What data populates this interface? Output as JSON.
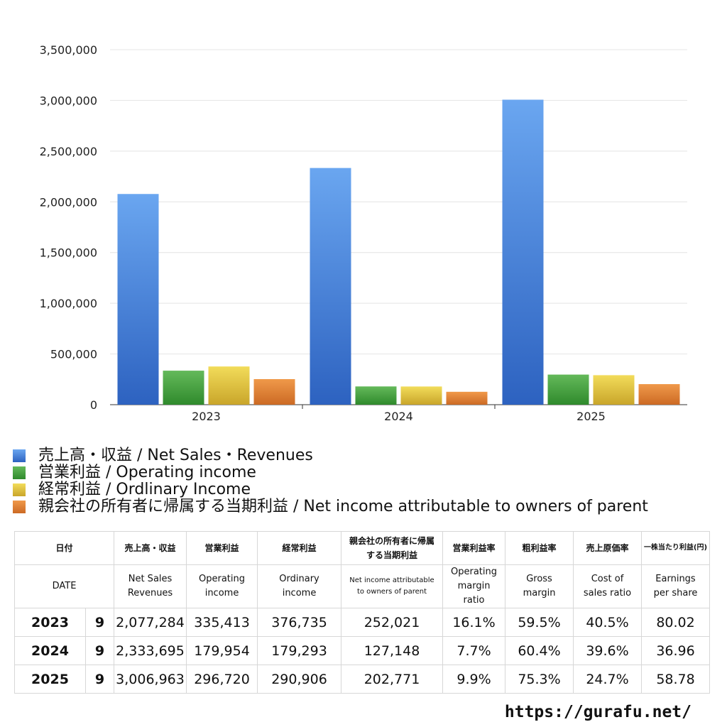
{
  "chart_data": {
    "type": "bar",
    "categories": [
      "2023",
      "2024",
      "2025"
    ],
    "ylim": [
      0,
      3500000
    ],
    "yticks": [
      "0",
      "500,000",
      "1,000,000",
      "1,500,000",
      "2,000,000",
      "2,500,000",
      "3,000,000",
      "3,500,000"
    ],
    "ytick_values": [
      0,
      500000,
      1000000,
      1500000,
      2000000,
      2500000,
      3000000,
      3500000
    ],
    "grid": true,
    "legend_position": "bottom",
    "series": [
      {
        "name": "売上高・収益 / Net Sales・Revenues",
        "color": "#4a86df",
        "values": [
          2077284,
          2333695,
          3006963
        ]
      },
      {
        "name": "営業利益 / Operating income",
        "color": "#45a23e",
        "values": [
          335413,
          179954,
          296720
        ]
      },
      {
        "name": "経常利益 / Ordlinary Income",
        "color": "#e6c73a",
        "values": [
          376735,
          179293,
          290906
        ]
      },
      {
        "name": "親会社の所有者に帰属する当期利益 / Net income attributable to owners of parent",
        "color": "#e07e30",
        "values": [
          252021,
          127148,
          202771
        ]
      }
    ]
  },
  "table": {
    "headers_jp": [
      "日付",
      "売上高・収益",
      "営業利益",
      "経常利益",
      "親会社の所有者に帰属する当期利益",
      "営業利益率",
      "粗利益率",
      "売上原価率",
      "一株当たり利益(円)"
    ],
    "headers_en": [
      "DATE",
      "Net Sales Revenues",
      "Operating income",
      "Ordinary income",
      "Net income attributable to owners of parent",
      "Operating margin ratio",
      "Gross margin",
      "Cost of sales ratio",
      "Earnings per share"
    ],
    "rows": [
      {
        "year": "2023",
        "month": "9",
        "sales": "2,077,284",
        "op": "335,413",
        "ord": "376,735",
        "net": "252,021",
        "opm": "16.1%",
        "gm": "59.5%",
        "cos": "40.5%",
        "eps": "80.02"
      },
      {
        "year": "2024",
        "month": "9",
        "sales": "2,333,695",
        "op": "179,954",
        "ord": "179,293",
        "net": "127,148",
        "opm": "7.7%",
        "gm": "60.4%",
        "cos": "39.6%",
        "eps": "36.96"
      },
      {
        "year": "2025",
        "month": "9",
        "sales": "3,006,963",
        "op": "296,720",
        "ord": "290,906",
        "net": "202,771",
        "opm": "9.9%",
        "gm": "75.3%",
        "cos": "24.7%",
        "eps": "58.78"
      }
    ]
  },
  "source": "https://gurafu.net/"
}
